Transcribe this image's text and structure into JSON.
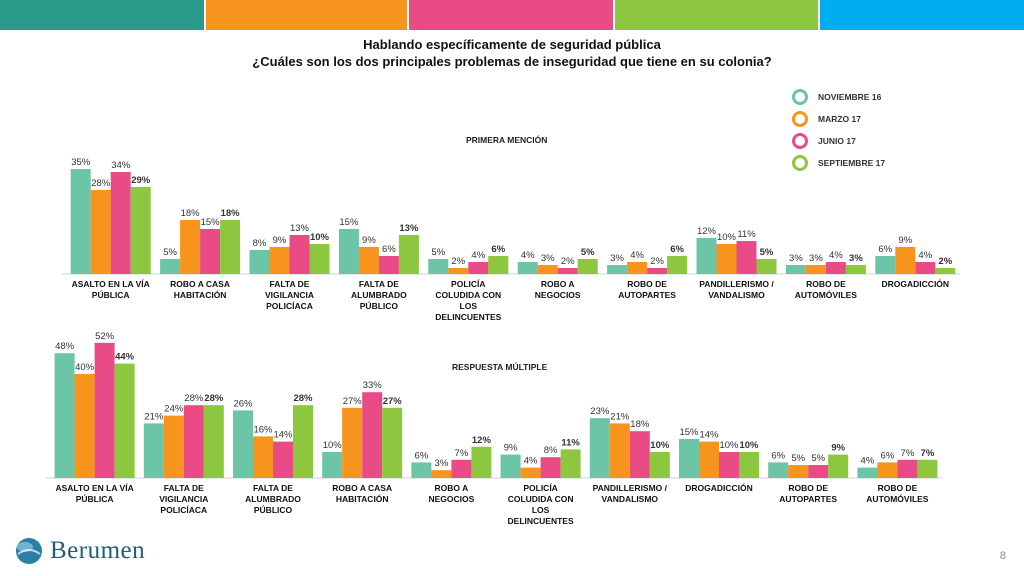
{
  "header": {
    "bar_colors": [
      "#2b9a8a",
      "#f7941d",
      "#e94b87",
      "#8dc63f",
      "#00aeef"
    ]
  },
  "title": {
    "line1": "Hablando específicamente de seguridad pública",
    "line2": "¿Cuáles son los dos principales problemas de inseguridad que tiene en su colonia?"
  },
  "legend": [
    {
      "label": "NOVIEMBRE 16",
      "color": "#6cc5a6"
    },
    {
      "label": "MARZO 17",
      "color": "#f7941d"
    },
    {
      "label": "JUNIO 17",
      "color": "#e94b87"
    },
    {
      "label": "SEPTIEMBRE 17",
      "color": "#8dc63f"
    }
  ],
  "chart_data": [
    {
      "type": "bar",
      "title": "PRIMERA MENCIÓN",
      "categories": [
        [
          "ASALTO EN LA VÍA",
          "PÚBLICA"
        ],
        [
          "ROBO A CASA",
          "HABITACIÓN"
        ],
        [
          "FALTA DE",
          "VIGILANCIA",
          "POLICÍACA"
        ],
        [
          "FALTA DE",
          "ALUMBRADO",
          "PÚBLICO"
        ],
        [
          "POLICÍA",
          "COLUDIDA CON",
          "LOS",
          "DELINCUENTES"
        ],
        [
          "ROBO A",
          "NEGOCIOS"
        ],
        [
          "ROBO DE",
          "AUTOPARTES"
        ],
        [
          "PANDILLERISMO /",
          "VANDALISMO"
        ],
        [
          "ROBO DE",
          "AUTOMÓVILES"
        ],
        [
          "DROGADICCIÓN"
        ]
      ],
      "series": [
        {
          "name": "NOVIEMBRE 16",
          "values": [
            35,
            5,
            8,
            15,
            5,
            4,
            3,
            12,
            3,
            6
          ]
        },
        {
          "name": "MARZO 17",
          "values": [
            28,
            18,
            9,
            9,
            2,
            3,
            4,
            10,
            3,
            9
          ]
        },
        {
          "name": "JUNIO 17",
          "values": [
            34,
            15,
            13,
            6,
            4,
            2,
            2,
            11,
            4,
            4
          ]
        },
        {
          "name": "SEPTIEMBRE 17",
          "values": [
            29,
            18,
            10,
            13,
            6,
            5,
            6,
            5,
            3,
            2
          ]
        }
      ],
      "unit": "%",
      "ylim": [
        0,
        40
      ]
    },
    {
      "type": "bar",
      "title": "RESPUESTA MÚLTIPLE",
      "categories": [
        [
          "ASALTO EN LA VÍA",
          "PÚBLICA"
        ],
        [
          "FALTA DE",
          "VIGILANCIA",
          "POLICÍACA"
        ],
        [
          "FALTA DE",
          "ALUMBRADO",
          "PÚBLICO"
        ],
        [
          "ROBO A CASA",
          "HABITACIÓN"
        ],
        [
          "ROBO A",
          "NEGOCIOS"
        ],
        [
          "POLICÍA",
          "COLUDIDA CON",
          "LOS",
          "DELINCUENTES"
        ],
        [
          "PANDILLERISMO /",
          "VANDALISMO"
        ],
        [
          "DROGADICCIÓN"
        ],
        [
          "ROBO DE",
          "AUTOPARTES"
        ],
        [
          "ROBO DE",
          "AUTOMÓVILES"
        ]
      ],
      "series": [
        {
          "name": "NOVIEMBRE 16",
          "values": [
            48,
            21,
            26,
            10,
            6,
            9,
            23,
            15,
            6,
            4
          ]
        },
        {
          "name": "MARZO 17",
          "values": [
            40,
            24,
            16,
            27,
            3,
            4,
            21,
            14,
            5,
            6
          ]
        },
        {
          "name": "JUNIO 17",
          "values": [
            52,
            28,
            14,
            33,
            7,
            8,
            18,
            10,
            5,
            7
          ]
        },
        {
          "name": "SEPTIEMBRE 17",
          "values": [
            44,
            28,
            28,
            27,
            12,
            11,
            10,
            10,
            9,
            7
          ]
        }
      ],
      "unit": "%",
      "ylim": [
        0,
        60
      ]
    }
  ],
  "footer": {
    "logo_text": "Berumen",
    "page_number": "8"
  }
}
